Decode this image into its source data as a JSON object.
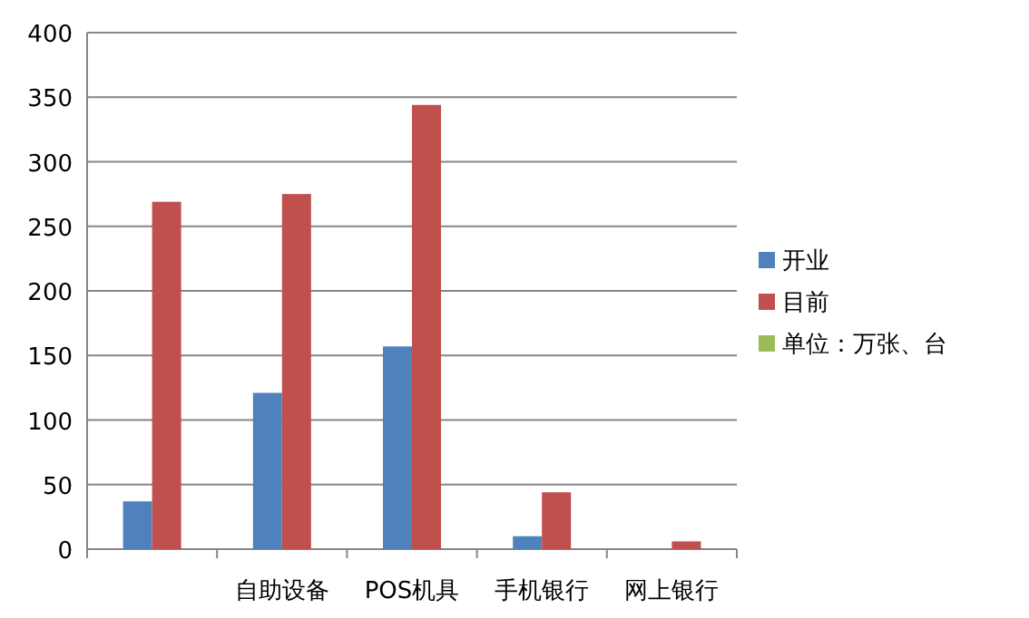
{
  "chart_data": {
    "type": "bar",
    "categories": [
      null,
      "自助设备",
      "POS机具",
      "手机银行",
      "网上银行"
    ],
    "series": [
      {
        "name": "开业",
        "color": "#4f81bd",
        "values": [
          37,
          121,
          157,
          10,
          0
        ]
      },
      {
        "name": "目前",
        "color": "#c0504d",
        "values": [
          269,
          275,
          344,
          44,
          6
        ]
      },
      {
        "name": "单位：万张、台",
        "color": "#9bbb59",
        "values": [
          null,
          null,
          null,
          null,
          null
        ]
      }
    ],
    "ylim": [
      0,
      400
    ],
    "yticks": [
      0,
      50,
      100,
      150,
      200,
      250,
      300,
      350,
      400
    ],
    "grid": "y",
    "legend": "right"
  }
}
